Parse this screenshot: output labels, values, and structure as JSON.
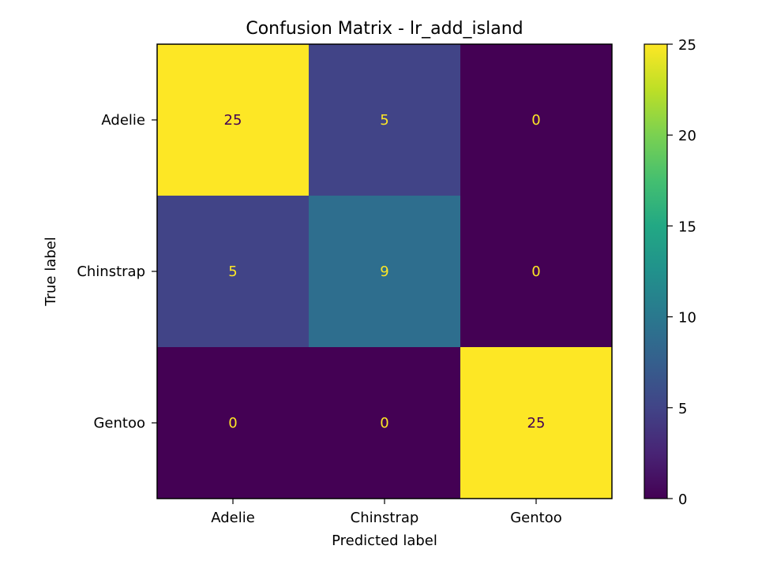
{
  "chart_data": {
    "type": "heatmap",
    "title": "Confusion Matrix - lr_add_island",
    "xlabel": "Predicted label",
    "ylabel": "True label",
    "x_categories": [
      "Adelie",
      "Chinstrap",
      "Gentoo"
    ],
    "y_categories": [
      "Adelie",
      "Chinstrap",
      "Gentoo"
    ],
    "values": [
      [
        25,
        5,
        0
      ],
      [
        5,
        9,
        0
      ],
      [
        0,
        0,
        25
      ]
    ],
    "colormap": "viridis",
    "color_range": [
      0,
      25
    ],
    "colorbar_ticks": [
      "0",
      "5",
      "10",
      "15",
      "20",
      "25"
    ],
    "cell_text_colors": {
      "on_dark": "#fde725",
      "on_light": "#440154"
    },
    "grid": false
  }
}
